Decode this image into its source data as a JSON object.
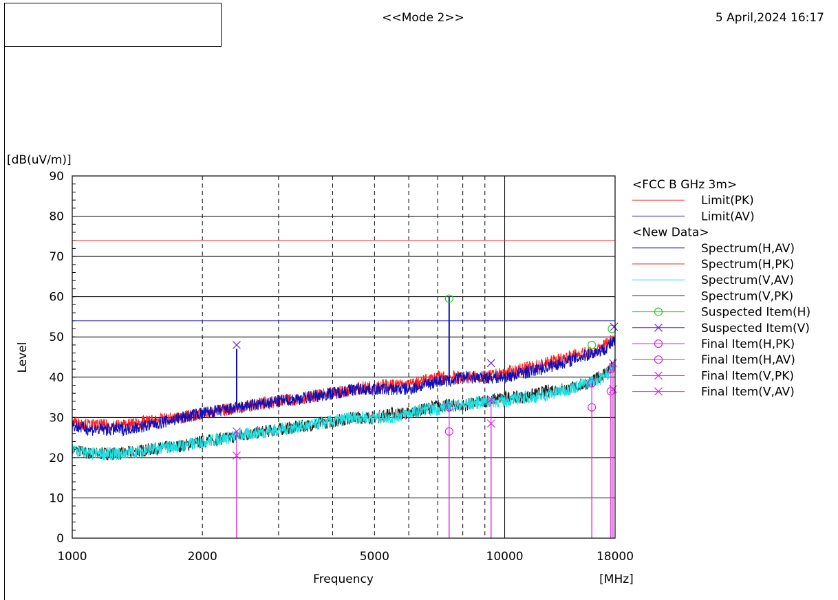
{
  "header": {
    "title": "<<Mode 2>>",
    "datetime": "5 April,2024 16:17"
  },
  "chart_data": {
    "type": "line",
    "xlabel": "Frequency",
    "xunit": "[MHz]",
    "ylabel": "Level",
    "yunit": "[dB(uV/m)]",
    "xscale": "log",
    "xlim": [
      1000,
      18000
    ],
    "ylim": [
      0,
      90
    ],
    "xticks": [
      1000,
      2000,
      5000,
      10000,
      18000
    ],
    "yticks": [
      0,
      10,
      20,
      30,
      40,
      50,
      60,
      70,
      80,
      90
    ],
    "grid": true,
    "legend_position": "right",
    "legend": [
      {
        "kind": "header",
        "label": "<FCC B GHz 3m>"
      },
      {
        "kind": "line",
        "label": "Limit(PK)",
        "color": "#ff3030"
      },
      {
        "kind": "line",
        "label": "Limit(AV)",
        "color": "#2020d0"
      },
      {
        "kind": "header",
        "label": "<New Data>"
      },
      {
        "kind": "line",
        "label": "Spectrum(H,AV)",
        "color": "#1010b8"
      },
      {
        "kind": "line",
        "label": "Spectrum(H,PK)",
        "color": "#ff2020"
      },
      {
        "kind": "line",
        "label": "Spectrum(V,AV)",
        "color": "#20e0e0"
      },
      {
        "kind": "line",
        "label": "Spectrum(V,PK)",
        "color": "#202020"
      },
      {
        "kind": "marker",
        "label": "Suspected Item(H)",
        "color": "#20d020",
        "marker": "circle"
      },
      {
        "kind": "marker",
        "label": "Suspected Item(V)",
        "color": "#6a20d8",
        "marker": "x"
      },
      {
        "kind": "marker",
        "label": "Final Item(H,PK)",
        "color": "#e020e0",
        "marker": "circle"
      },
      {
        "kind": "marker",
        "label": "Final Item(H,AV)",
        "color": "#e020e0",
        "marker": "circle"
      },
      {
        "kind": "marker",
        "label": "Final Item(V,PK)",
        "color": "#e020e0",
        "marker": "x"
      },
      {
        "kind": "marker",
        "label": "Final Item(V,AV)",
        "color": "#e020e0",
        "marker": "x"
      }
    ],
    "limits": [
      {
        "name": "Limit(PK)",
        "value": 74,
        "color": "#ff3030"
      },
      {
        "name": "Limit(AV)",
        "value": 54,
        "color": "#2020d0"
      }
    ],
    "series": [
      {
        "name": "Spectrum(H,PK)",
        "color": "#ff2020",
        "x": [
          1000,
          1100,
          1300,
          1500,
          1800,
          2000,
          2300,
          2600,
          3000,
          3500,
          4000,
          4500,
          5000,
          5500,
          6000,
          6500,
          7000,
          7500,
          8000,
          9000,
          10000,
          11000,
          12000,
          13000,
          14000,
          15000,
          16000,
          17000,
          18000
        ],
        "y": [
          29,
          28,
          28,
          29,
          30,
          31,
          32,
          33,
          34,
          35,
          36,
          37,
          38,
          38,
          38,
          39,
          40,
          40,
          40,
          40,
          41,
          42,
          43,
          44,
          45,
          46,
          46,
          48,
          50
        ]
      },
      {
        "name": "Spectrum(H,AV)",
        "color": "#1010b8",
        "x": [
          1000,
          1100,
          1300,
          1500,
          1800,
          2000,
          2300,
          2600,
          3000,
          3500,
          4000,
          4500,
          5000,
          5500,
          6000,
          6500,
          7000,
          7500,
          8000,
          9000,
          10000,
          11000,
          12000,
          13000,
          14000,
          15000,
          16000,
          17000,
          18000
        ],
        "y": [
          28,
          27,
          27,
          28,
          30,
          31,
          32,
          33,
          34,
          35,
          36,
          37,
          37,
          37,
          37,
          38,
          39,
          39,
          40,
          40,
          40,
          41,
          42,
          43,
          44,
          45,
          46,
          47,
          49
        ]
      },
      {
        "name": "Spectrum(V,PK)",
        "color": "#202020",
        "x": [
          1000,
          1100,
          1300,
          1500,
          1800,
          2000,
          2300,
          2600,
          3000,
          3500,
          4000,
          4500,
          5000,
          5500,
          6000,
          6500,
          7000,
          7500,
          8000,
          9000,
          10000,
          11000,
          12000,
          13000,
          14000,
          15000,
          16000,
          17000,
          18000
        ],
        "y": [
          22,
          21,
          21,
          22,
          23,
          24,
          25,
          26,
          27,
          28,
          29,
          30,
          30,
          31,
          31,
          32,
          33,
          33,
          33,
          34,
          35,
          35,
          36,
          37,
          37,
          38,
          39,
          41,
          43
        ]
      },
      {
        "name": "Spectrum(V,AV)",
        "color": "#20e0e0",
        "x": [
          1000,
          1100,
          1300,
          1500,
          1800,
          2000,
          2300,
          2600,
          3000,
          3500,
          4000,
          4500,
          5000,
          5500,
          6000,
          6500,
          7000,
          7500,
          8000,
          9000,
          10000,
          11000,
          12000,
          13000,
          14000,
          15000,
          16000,
          17000,
          18000
        ],
        "y": [
          22,
          21,
          21,
          22,
          23,
          24,
          25,
          26,
          27,
          28,
          29,
          30,
          30,
          30,
          31,
          32,
          32,
          33,
          33,
          34,
          34,
          35,
          35,
          36,
          37,
          38,
          39,
          40,
          43
        ]
      }
    ],
    "spikes": [
      {
        "x": 2400,
        "y": 47,
        "color": "#1010b8"
      },
      {
        "x": 7440,
        "y": 60,
        "color": "#1010b8"
      }
    ],
    "markers": [
      {
        "series": "Suspected Item(H)",
        "x": 7440,
        "y": 59.5,
        "symbol": "circle",
        "color": "#20d020"
      },
      {
        "series": "Suspected Item(H)",
        "x": 15900,
        "y": 48,
        "symbol": "circle",
        "color": "#20d020"
      },
      {
        "series": "Suspected Item(H)",
        "x": 17700,
        "y": 52,
        "symbol": "circle",
        "color": "#20d020"
      },
      {
        "series": "Suspected Item(V)",
        "x": 2400,
        "y": 48,
        "symbol": "x",
        "color": "#6a20d8"
      },
      {
        "series": "Suspected Item(V)",
        "x": 9300,
        "y": 43.5,
        "symbol": "x",
        "color": "#6a20d8"
      },
      {
        "series": "Suspected Item(V)",
        "x": 17900,
        "y": 52.5,
        "symbol": "x",
        "color": "#6a20d8"
      },
      {
        "series": "Final Item(H,PK)",
        "x": 7440,
        "y": 32.5,
        "symbol": "circle",
        "color": "#e020e0",
        "stem": true
      },
      {
        "series": "Final Item(H,AV)",
        "x": 7440,
        "y": 26.5,
        "symbol": "circle",
        "color": "#e020e0",
        "stem": true
      },
      {
        "series": "Final Item(H,PK)",
        "x": 15900,
        "y": 38.5,
        "symbol": "circle",
        "color": "#e020e0",
        "stem": true
      },
      {
        "series": "Final Item(H,AV)",
        "x": 15900,
        "y": 32.5,
        "symbol": "circle",
        "color": "#e020e0",
        "stem": true
      },
      {
        "series": "Final Item(H,PK)",
        "x": 17600,
        "y": 42,
        "symbol": "circle",
        "color": "#e020e0",
        "stem": true
      },
      {
        "series": "Final Item(H,AV)",
        "x": 17600,
        "y": 36.5,
        "symbol": "circle",
        "color": "#e020e0",
        "stem": true
      },
      {
        "series": "Final Item(V,PK)",
        "x": 2400,
        "y": 26.5,
        "symbol": "x",
        "color": "#e020e0",
        "stem": true
      },
      {
        "series": "Final Item(V,AV)",
        "x": 2400,
        "y": 20.5,
        "symbol": "x",
        "color": "#e020e0",
        "stem": true
      },
      {
        "series": "Final Item(V,PK)",
        "x": 9300,
        "y": 34.5,
        "symbol": "x",
        "color": "#e020e0",
        "stem": true
      },
      {
        "series": "Final Item(V,AV)",
        "x": 9300,
        "y": 28.5,
        "symbol": "x",
        "color": "#e020e0",
        "stem": true
      },
      {
        "series": "Final Item(V,PK)",
        "x": 17800,
        "y": 43.5,
        "symbol": "x",
        "color": "#e020e0",
        "stem": true
      },
      {
        "series": "Final Item(V,AV)",
        "x": 17800,
        "y": 37,
        "symbol": "x",
        "color": "#e020e0",
        "stem": true
      }
    ]
  }
}
